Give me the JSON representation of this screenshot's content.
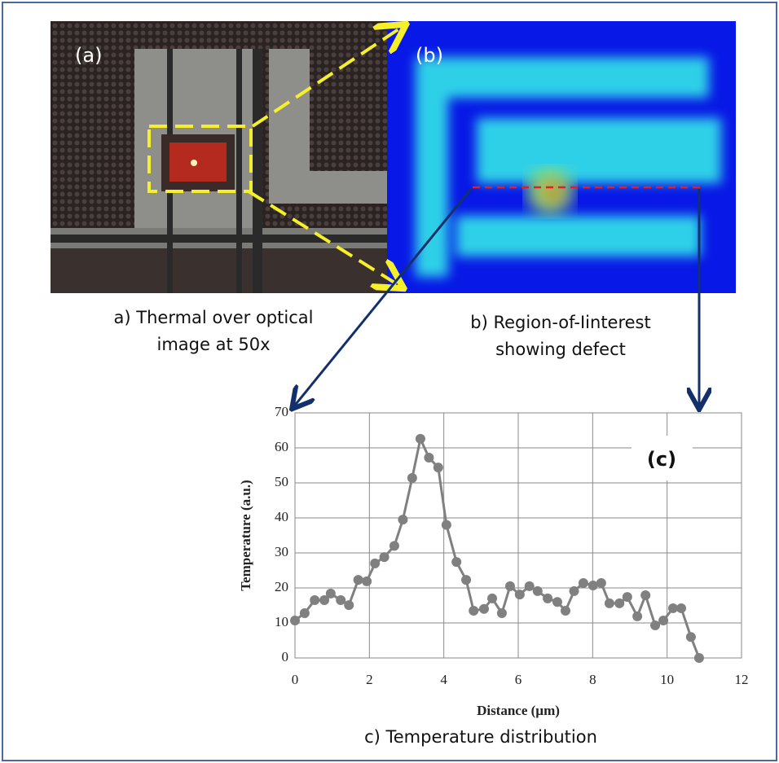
{
  "panels": {
    "a": {
      "label": "(a)",
      "caption": [
        "a) Thermal over optical",
        "image at 50x"
      ]
    },
    "b": {
      "label": "(b)",
      "caption": [
        "b) Region-of-Iinterest",
        "showing defect"
      ]
    }
  },
  "chart_data": {
    "type": "line",
    "annotation": "(c)",
    "caption": "c) Temperature distribution",
    "x_label": "Distance (µm)",
    "y_label": "Temperature (a.u.)",
    "xlim": [
      0,
      12
    ],
    "xticks": [
      0,
      2,
      4,
      6,
      8,
      10,
      12
    ],
    "ylim": [
      0,
      70
    ],
    "yticks": [
      0,
      10,
      20,
      30,
      40,
      50,
      60,
      70
    ],
    "grid": true,
    "series": [
      {
        "color": "#808080",
        "x": [
          0,
          0.26,
          0.53,
          0.79,
          0.96,
          1.23,
          1.45,
          1.7,
          1.93,
          2.15,
          2.4,
          2.67,
          2.9,
          3.15,
          3.37,
          3.6,
          3.85,
          4.07,
          4.34,
          4.6,
          4.8,
          5.08,
          5.3,
          5.56,
          5.78,
          6.04,
          6.3,
          6.52,
          6.79,
          7.05,
          7.27,
          7.5,
          7.75,
          8.01,
          8.23,
          8.45,
          8.72,
          8.93,
          9.2,
          9.42,
          9.68,
          9.9,
          10.16,
          10.38,
          10.64,
          10.86
        ],
        "values": [
          10.7,
          12.8,
          16.5,
          16.5,
          18.4,
          16.5,
          15.1,
          22.3,
          21.9,
          27,
          28.8,
          32,
          39.5,
          51.4,
          62.6,
          57.2,
          54.4,
          38,
          27.4,
          22.3,
          13.5,
          14,
          17,
          12.8,
          20.5,
          18.1,
          20.5,
          19.1,
          17,
          16,
          13.5,
          19.1,
          21.4,
          20.7,
          21.4,
          15.6,
          15.6,
          17.4,
          11.9,
          17.9,
          9.3,
          10.7,
          14.2,
          14.2,
          6,
          0
        ]
      }
    ]
  }
}
